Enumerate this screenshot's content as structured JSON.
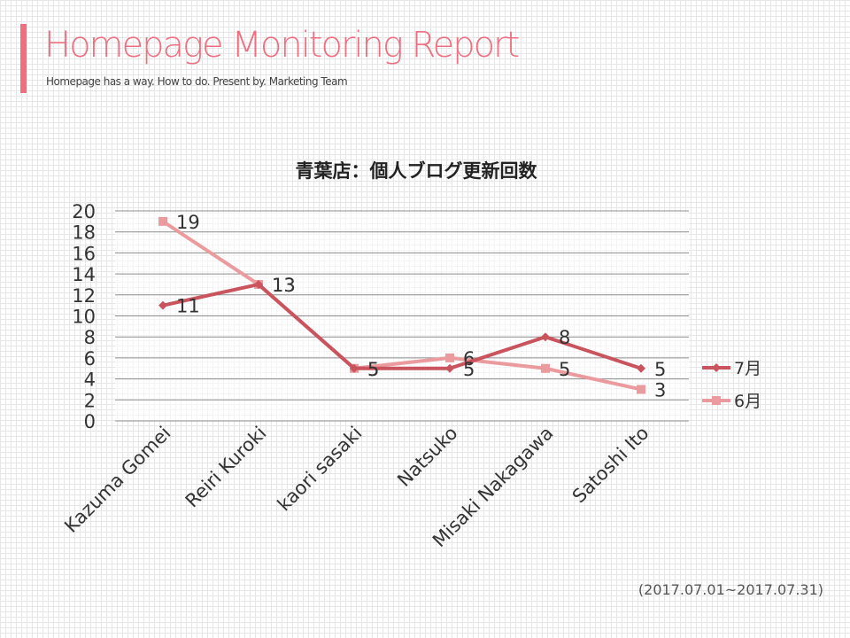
{
  "header": {
    "title": "Homepage Monitoring Report",
    "subtitle": "Homepage has a way. How to do. Present by. Marketing Team"
  },
  "footnote": "(2017.07.01~2017.07.31)",
  "colors": {
    "accent": "#ef6f80",
    "series_july": "#c9545e",
    "series_june": "#eb9a9e"
  },
  "chart_data": {
    "type": "line",
    "title": "青葉店：個人ブログ更新回数",
    "xlabel": "",
    "ylabel": "",
    "ylim": [
      0,
      20
    ],
    "yticks": [
      0,
      2,
      4,
      6,
      8,
      10,
      12,
      14,
      16,
      18,
      20
    ],
    "grid": true,
    "legend_position": "right",
    "categories": [
      "Kazuma Gomei",
      "Reiri Kuroki",
      "kaori sasaki",
      "Natsuko",
      "Misaki Nakagawa",
      "Satoshi Ito"
    ],
    "series": [
      {
        "name": "7月",
        "values": [
          11,
          13,
          5,
          5,
          8,
          5
        ],
        "marker": "diamond",
        "color": "#c9545e"
      },
      {
        "name": "6月",
        "values": [
          19,
          13,
          5,
          6,
          5,
          3
        ],
        "marker": "square",
        "color": "#eb9a9e"
      }
    ]
  }
}
